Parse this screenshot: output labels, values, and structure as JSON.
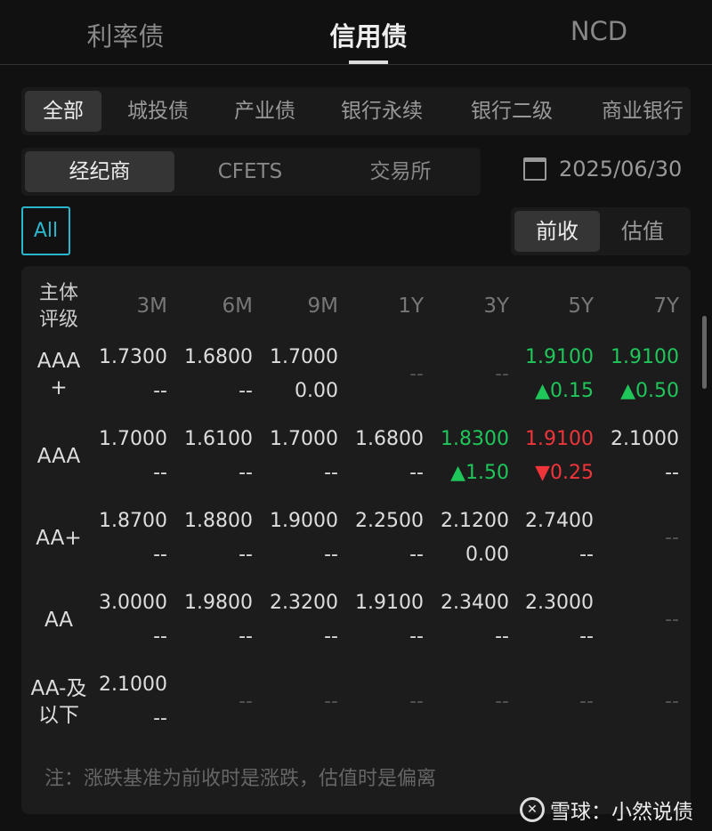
{
  "top_tabs": [
    "利率债",
    "信用债",
    "NCD"
  ],
  "active_top_tab": 1,
  "categories": [
    "全部",
    "城投债",
    "产业债",
    "银行永续",
    "银行二级",
    "商业银行"
  ],
  "sources": [
    "经纪商",
    "CFETS",
    "交易所"
  ],
  "date": "2025/06/30",
  "all_label": "All",
  "modes": [
    "前收",
    "估值"
  ],
  "table": {
    "header_label": "主体评级",
    "columns": [
      "3M",
      "6M",
      "9M",
      "1Y",
      "3Y",
      "5Y",
      "7Y"
    ],
    "rows": [
      {
        "rating": "AAA+",
        "cells": [
          {
            "v": "1.7300",
            "c": "--"
          },
          {
            "v": "1.6800",
            "c": "--"
          },
          {
            "v": "1.7000",
            "c": "0.00"
          },
          null,
          null,
          {
            "v": "1.9100",
            "c": "▲0.15",
            "color": "up"
          },
          {
            "v": "1.9100",
            "c": "▲0.50",
            "color": "up"
          }
        ]
      },
      {
        "rating": "AAA",
        "cells": [
          {
            "v": "1.7000",
            "c": "--"
          },
          {
            "v": "1.6100",
            "c": "--"
          },
          {
            "v": "1.7000",
            "c": "--"
          },
          {
            "v": "1.6800",
            "c": "--"
          },
          {
            "v": "1.8300",
            "c": "▲1.50",
            "color": "up"
          },
          {
            "v": "1.9100",
            "c": "▼0.25",
            "color": "down"
          },
          {
            "v": "2.1000",
            "c": "--"
          }
        ]
      },
      {
        "rating": "AA+",
        "cells": [
          {
            "v": "1.8700",
            "c": "--"
          },
          {
            "v": "1.8800",
            "c": "--"
          },
          {
            "v": "1.9000",
            "c": "--"
          },
          {
            "v": "2.2500",
            "c": "--"
          },
          {
            "v": "2.1200",
            "c": "0.00"
          },
          {
            "v": "2.7400",
            "c": "--"
          },
          null
        ]
      },
      {
        "rating": "AA",
        "cells": [
          {
            "v": "3.0000",
            "c": "--"
          },
          {
            "v": "1.9800",
            "c": "--"
          },
          {
            "v": "2.3200",
            "c": "--"
          },
          {
            "v": "1.9100",
            "c": "--"
          },
          {
            "v": "2.3400",
            "c": "--"
          },
          {
            "v": "2.3000",
            "c": "--"
          },
          null
        ]
      },
      {
        "rating": "AA-及以下",
        "cells": [
          {
            "v": "2.1000",
            "c": "--"
          },
          null,
          null,
          null,
          null,
          null,
          null
        ]
      }
    ],
    "empty_text": "--"
  },
  "note": "注：涨跌基准为前收时是涨跌，估值时是偏离",
  "watermark": "雪球：小然说债",
  "colors": {
    "up": "#1fc65a",
    "down": "#f0353a",
    "accent": "#2ab6cc"
  }
}
